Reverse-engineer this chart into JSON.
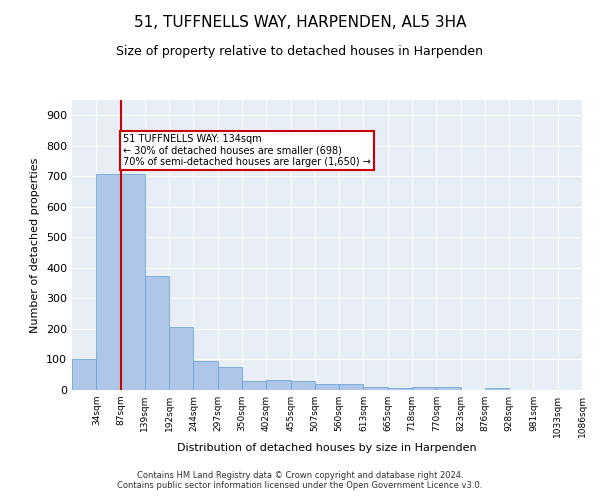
{
  "title1": "51, TUFFNELLS WAY, HARPENDEN, AL5 3HA",
  "title2": "Size of property relative to detached houses in Harpenden",
  "xlabel": "Distribution of detached houses by size in Harpenden",
  "ylabel": "Number of detached properties",
  "footnote": "Contains HM Land Registry data © Crown copyright and database right 2024.\nContains public sector information licensed under the Open Government Licence v3.0.",
  "bin_labels": [
    "34sqm",
    "87sqm",
    "139sqm",
    "192sqm",
    "244sqm",
    "297sqm",
    "350sqm",
    "402sqm",
    "455sqm",
    "507sqm",
    "560sqm",
    "613sqm",
    "665sqm",
    "718sqm",
    "770sqm",
    "823sqm",
    "876sqm",
    "928sqm",
    "981sqm",
    "1033sqm",
    "1086sqm"
  ],
  "bar_values": [
    101,
    707,
    707,
    373,
    205,
    96,
    74,
    30,
    32,
    30,
    20,
    21,
    10,
    8,
    10,
    9,
    0,
    7,
    0,
    0,
    0
  ],
  "bar_color": "#aec6e8",
  "bar_edge_color": "#5a9fd4",
  "vline_x": 2,
  "vline_color": "#cc0000",
  "annotation_text": "51 TUFFNELLS WAY: 134sqm\n← 30% of detached houses are smaller (698)\n70% of semi-detached houses are larger (1,650) →",
  "annotation_box_color": "#cc0000",
  "annotation_text_color": "#000000",
  "ylim": [
    0,
    950
  ],
  "yticks": [
    0,
    100,
    200,
    300,
    400,
    500,
    600,
    700,
    800,
    900
  ],
  "background_color": "#e8eef5",
  "grid_color": "#ffffff",
  "title1_fontsize": 11,
  "title2_fontsize": 9,
  "ylabel_fontsize": 8,
  "xlabel_fontsize": 8
}
